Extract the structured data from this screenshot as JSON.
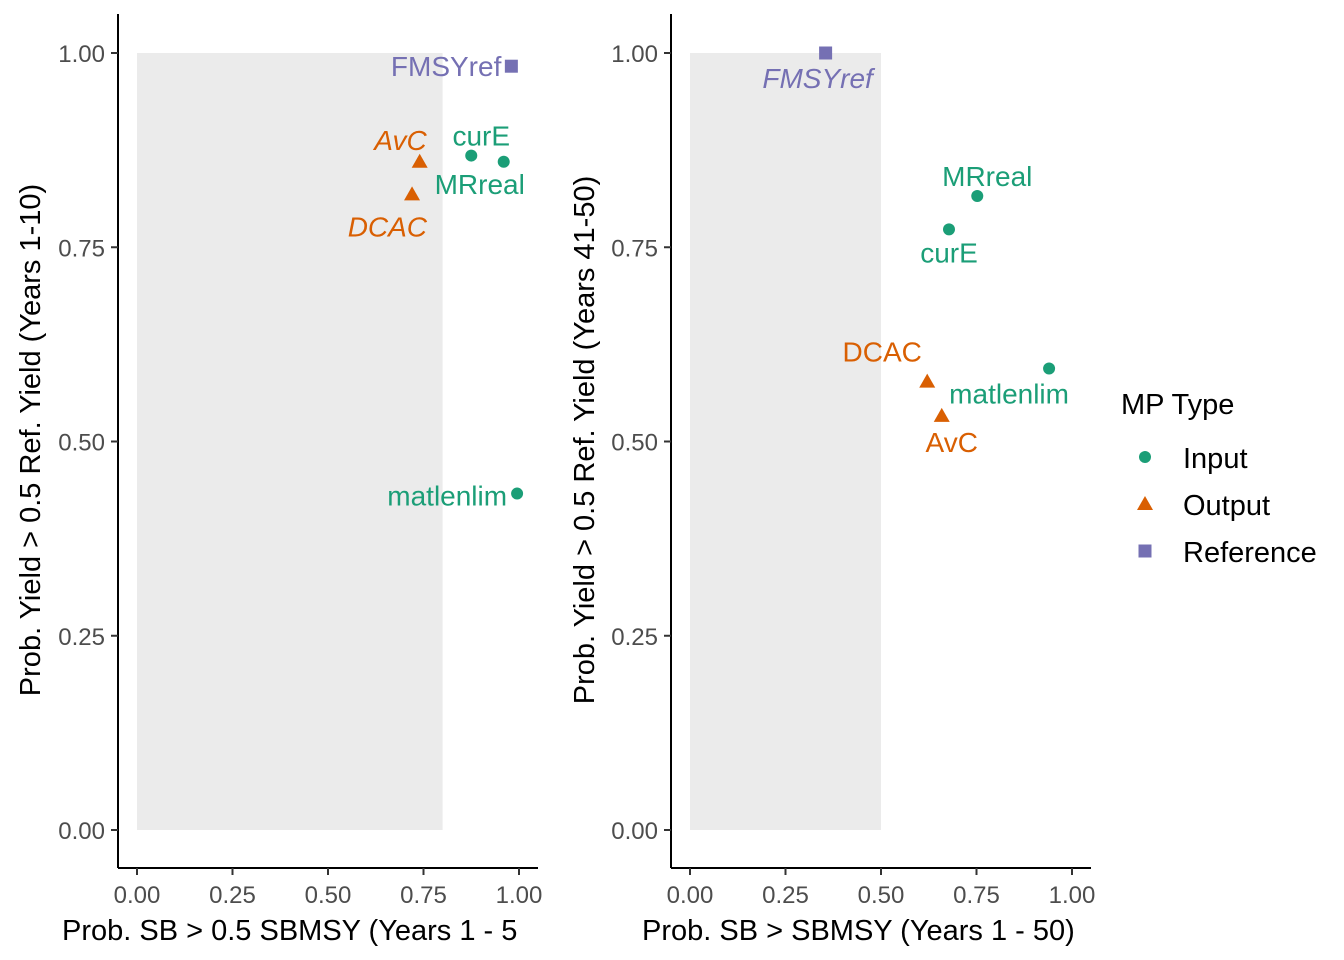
{
  "legend": {
    "title": "MP Type",
    "items": [
      {
        "label": "Input",
        "shape": "circle",
        "color": "#1B9E77"
      },
      {
        "label": "Output",
        "shape": "triangle",
        "color": "#D95F02"
      },
      {
        "label": "Reference",
        "shape": "square",
        "color": "#7570B3"
      }
    ]
  },
  "chart_data": [
    {
      "type": "scatter",
      "xlabel": "Prob. SB > 0.5 SBMSY (Years 1 - 5",
      "ylabel": "Prob. Yield > 0.5 Ref. Yield (Years 1-10)",
      "xlim": [
        0,
        1
      ],
      "ylim": [
        0,
        1
      ],
      "xticks": [
        "0.00",
        "0.25",
        "0.50",
        "0.75",
        "1.00"
      ],
      "yticks": [
        "0.00",
        "0.25",
        "0.50",
        "0.75",
        "1.00"
      ],
      "shaded_region": {
        "x": [
          0,
          0.8
        ],
        "y": [
          0,
          1
        ]
      },
      "points": [
        {
          "label": "FMSYref",
          "type": "Reference",
          "x": 0.98,
          "y": 0.983,
          "italic": false
        },
        {
          "label": "curE",
          "type": "Input",
          "x": 0.875,
          "y": 0.868,
          "italic": false
        },
        {
          "label": "MRreal",
          "type": "Input",
          "x": 0.96,
          "y": 0.86,
          "italic": false
        },
        {
          "label": "AvC",
          "type": "Output",
          "x": 0.74,
          "y": 0.86,
          "italic": true
        },
        {
          "label": "DCAC",
          "type": "Output",
          "x": 0.72,
          "y": 0.818,
          "italic": true
        },
        {
          "label": "matlenlim",
          "type": "Input",
          "x": 0.995,
          "y": 0.433,
          "italic": false
        }
      ]
    },
    {
      "type": "scatter",
      "xlabel": "Prob. SB > SBMSY (Years 1 - 50)",
      "ylabel": "Prob. Yield > 0.5 Ref. Yield (Years 41-50)",
      "xlim": [
        0,
        1
      ],
      "ylim": [
        0,
        1
      ],
      "xticks": [
        "0.00",
        "0.25",
        "0.50",
        "0.75",
        "1.00"
      ],
      "yticks": [
        "0.00",
        "0.25",
        "0.50",
        "0.75",
        "1.00"
      ],
      "shaded_region": {
        "x": [
          0,
          0.5
        ],
        "y": [
          0,
          1
        ]
      },
      "points": [
        {
          "label": "FMSYref",
          "type": "Reference",
          "x": 0.355,
          "y": 1.0,
          "italic": true
        },
        {
          "label": "MRreal",
          "type": "Input",
          "x": 0.752,
          "y": 0.816,
          "italic": false
        },
        {
          "label": "curE",
          "type": "Input",
          "x": 0.678,
          "y": 0.773,
          "italic": false
        },
        {
          "label": "DCAC",
          "type": "Output",
          "x": 0.621,
          "y": 0.577,
          "italic": false
        },
        {
          "label": "matlenlim",
          "type": "Input",
          "x": 0.94,
          "y": 0.594,
          "italic": false
        },
        {
          "label": "AvC",
          "type": "Output",
          "x": 0.659,
          "y": 0.533,
          "italic": false
        }
      ]
    }
  ]
}
